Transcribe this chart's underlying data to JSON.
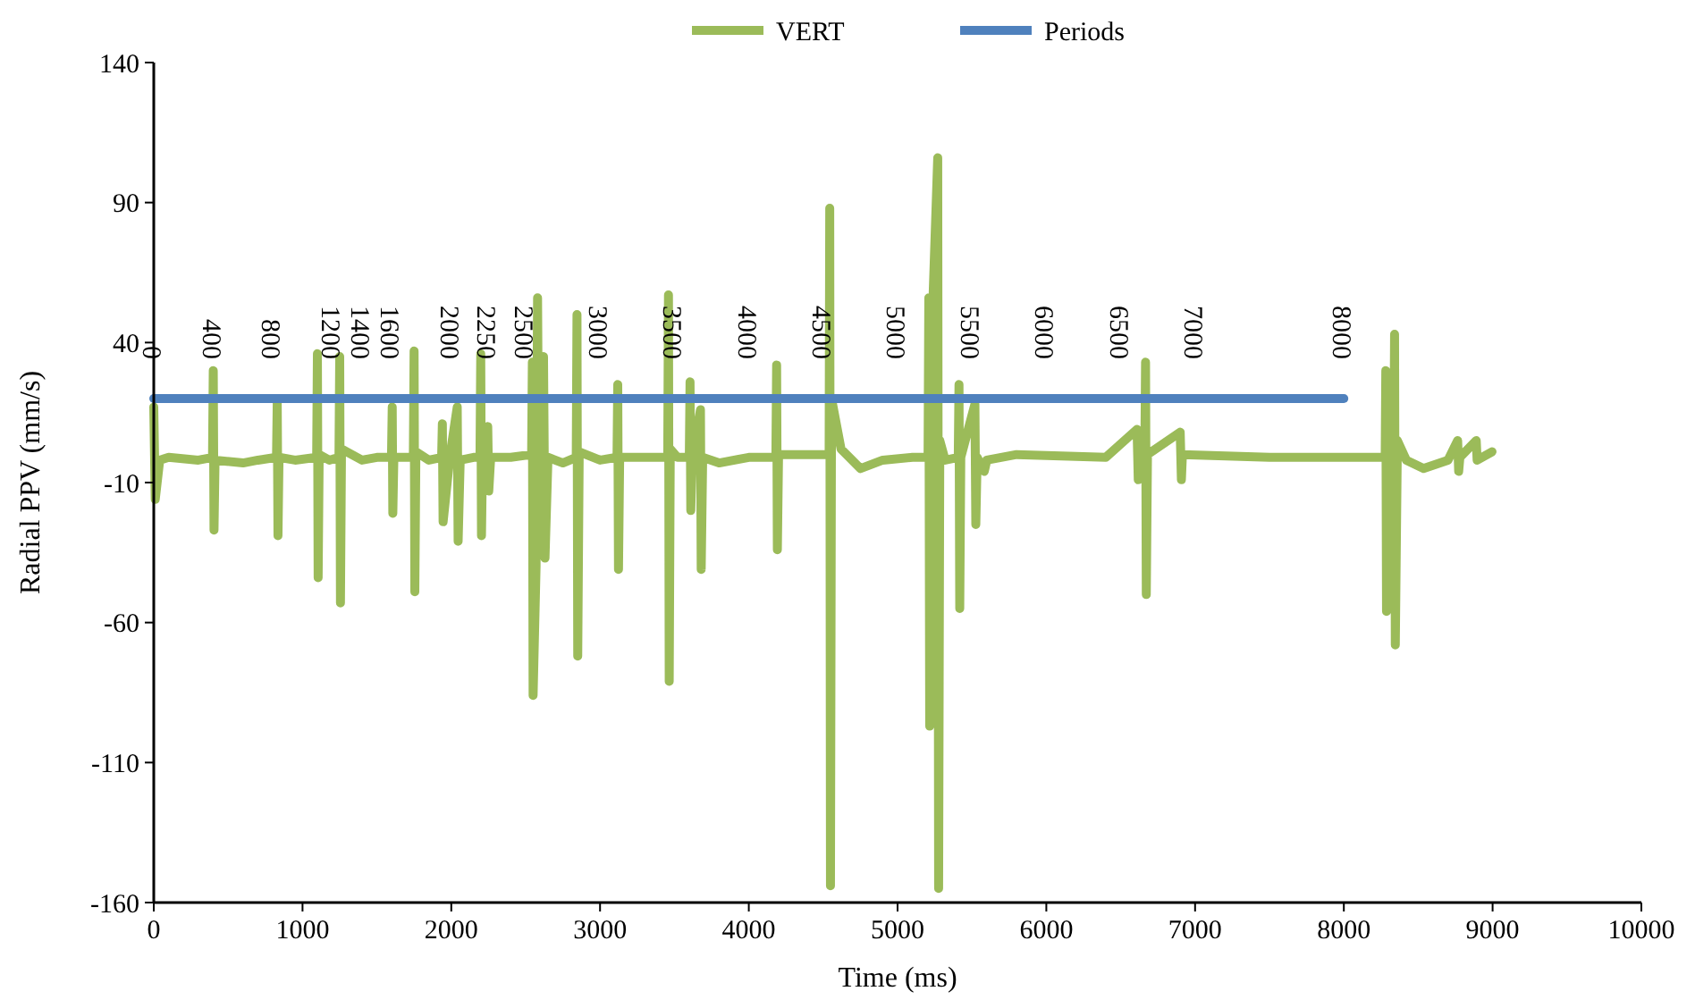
{
  "chart_data": {
    "type": "line",
    "xlabel": "Time (ms)",
    "ylabel": "Radial PPV (mm/s)",
    "xlim": [
      0,
      10000
    ],
    "xticks": [
      0,
      1000,
      2000,
      3000,
      4000,
      5000,
      6000,
      7000,
      8000,
      9000,
      10000
    ],
    "ylim": [
      -160,
      140
    ],
    "yticks": [
      -160,
      -110,
      -60,
      -10,
      40,
      90,
      140
    ],
    "grid": false,
    "legend": "top",
    "marker": "none",
    "line_style": "solid",
    "series": [
      {
        "name": "VERT",
        "color": "#9bbb59",
        "x": [
          0,
          10,
          40,
          100,
          300,
          395,
          400,
          405,
          412,
          600,
          700,
          825,
          830,
          835,
          842,
          950,
          1095,
          1100,
          1105,
          1112,
          1180,
          1245,
          1250,
          1255,
          1262,
          1400,
          1500,
          1598,
          1603,
          1607,
          1614,
          1745,
          1750,
          1755,
          1762,
          1850,
          1935,
          1940,
          1945,
          1990,
          2040,
          2046,
          2060,
          2150,
          2193,
          2198,
          2203,
          2210,
          2245,
          2252,
          2265,
          2400,
          2540,
          2545,
          2550,
          2570,
          2580,
          2590,
          2620,
          2630,
          2650,
          2750,
          2840,
          2845,
          2850,
          2860,
          3000,
          3114,
          3119,
          3124,
          3132,
          3300,
          3455,
          3460,
          3465,
          3472,
          3520,
          3600,
          3605,
          3610,
          3620,
          3675,
          3680,
          3690,
          3800,
          4000,
          4182,
          4187,
          4192,
          4200,
          4540,
          4544,
          4549,
          4556,
          4620,
          4750,
          4900,
          5100,
          5205,
          5210,
          5216,
          5222,
          5270,
          5276,
          5284,
          5320,
          5408,
          5413,
          5418,
          5425,
          5520,
          5526,
          5535,
          5583,
          5600,
          5800,
          6400,
          6610,
          6618,
          6662,
          6667,
          6672,
          6680,
          6900,
          6908,
          6915,
          7500,
          8250,
          8278,
          8282,
          8287,
          8300,
          8336,
          8341,
          8346,
          8360,
          8420,
          8536,
          8700,
          8765,
          8772,
          8780,
          8890,
          8896,
          8996
        ],
        "values": [
          17,
          -16,
          -2,
          -1,
          -2,
          -1,
          30,
          -27,
          -2,
          -3,
          -2,
          -1,
          19,
          -29,
          -1,
          -2,
          -1,
          36,
          -44,
          0,
          -2,
          -1,
          35,
          -53,
          2,
          -2,
          -1,
          -1,
          17,
          -21,
          -1,
          -1,
          37,
          -49,
          1,
          -2,
          -1,
          11,
          -24,
          -1,
          17,
          -31,
          -2,
          -1,
          -1,
          36,
          -29,
          -1,
          10,
          -13,
          -1,
          -1,
          0,
          33,
          -86,
          -40,
          56,
          -35,
          35,
          -37,
          -1,
          -3,
          -1,
          50,
          -72,
          1,
          -2,
          -1,
          25,
          -41,
          -1,
          -1,
          -1,
          57,
          -81,
          2,
          -1,
          -1,
          26,
          -20,
          -1,
          16,
          -41,
          -1,
          -3,
          -1,
          -1,
          32,
          -34,
          0,
          0,
          88,
          -154,
          20,
          2,
          -5,
          -2,
          -1,
          -1,
          56,
          -97,
          30,
          106,
          -155,
          5,
          -2,
          -1,
          25,
          -55,
          -1,
          18,
          -25,
          -1,
          -6,
          -2,
          0,
          -1,
          9,
          -9,
          -1,
          33,
          -50,
          0,
          8,
          -9,
          0,
          -1,
          -1,
          -1,
          30,
          -56,
          20,
          -1,
          43,
          -68,
          5,
          -2,
          -5,
          -2,
          5,
          -6,
          -1,
          5,
          -2,
          1
        ]
      },
      {
        "name": "Periods",
        "color": "#4f81bd",
        "x": [
          0,
          400,
          800,
          1200,
          1400,
          1600,
          2000,
          2250,
          2500,
          3000,
          3500,
          4000,
          4500,
          5000,
          5500,
          6000,
          6500,
          7000,
          8000
        ],
        "values": [
          20,
          20,
          20,
          20,
          20,
          20,
          20,
          20,
          20,
          20,
          20,
          20,
          20,
          20,
          20,
          20,
          20,
          20,
          20
        ]
      }
    ],
    "annotations": [
      {
        "text": "0",
        "x": 0,
        "y": 20
      },
      {
        "text": "400",
        "x": 400,
        "y": 20
      },
      {
        "text": "800",
        "x": 800,
        "y": 20
      },
      {
        "text": "1200",
        "x": 1200,
        "y": 20
      },
      {
        "text": "1400",
        "x": 1400,
        "y": 20
      },
      {
        "text": "1600",
        "x": 1600,
        "y": 20
      },
      {
        "text": "2000",
        "x": 2000,
        "y": 20
      },
      {
        "text": "2250",
        "x": 2250,
        "y": 20
      },
      {
        "text": "2500",
        "x": 2500,
        "y": 20
      },
      {
        "text": "3000",
        "x": 3000,
        "y": 20
      },
      {
        "text": "3500",
        "x": 3500,
        "y": 20
      },
      {
        "text": "4000",
        "x": 4000,
        "y": 20
      },
      {
        "text": "4500",
        "x": 4500,
        "y": 20
      },
      {
        "text": "5000",
        "x": 5000,
        "y": 20
      },
      {
        "text": "5500",
        "x": 5500,
        "y": 20
      },
      {
        "text": "6000",
        "x": 6000,
        "y": 20
      },
      {
        "text": "6500",
        "x": 6500,
        "y": 20
      },
      {
        "text": "7000",
        "x": 7000,
        "y": 20
      },
      {
        "text": "8000",
        "x": 8000,
        "y": 20
      }
    ]
  }
}
